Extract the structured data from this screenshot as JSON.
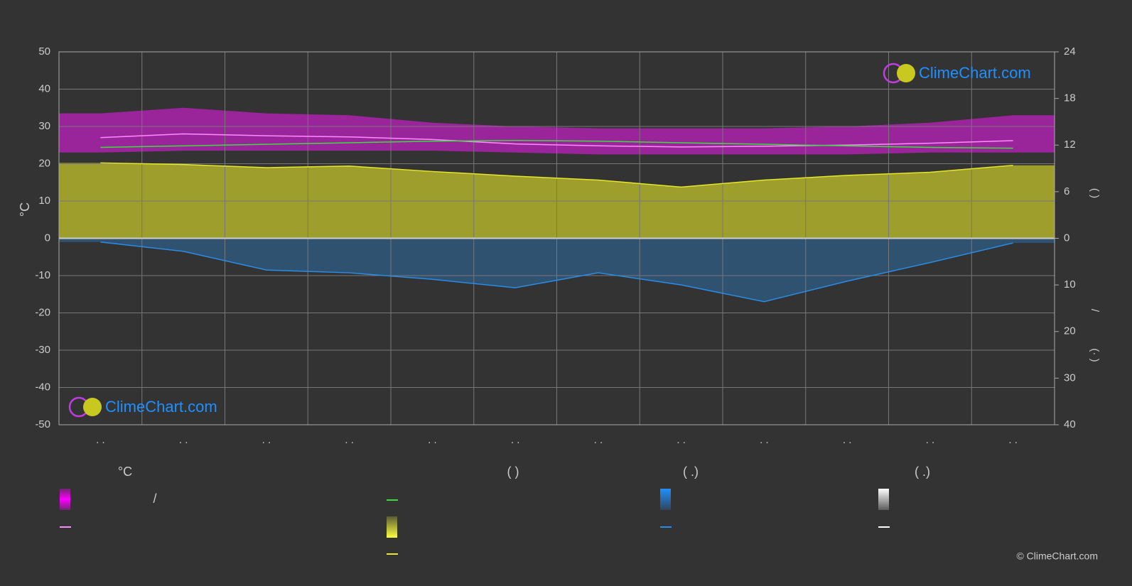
{
  "chart_data": {
    "type": "line",
    "categories": [
      ". .",
      ". .",
      ". .",
      ". .",
      ". .",
      ". .",
      ". .",
      ". .",
      ". .",
      ". .",
      ". .",
      ". ."
    ],
    "ylabel": "°C",
    "y2label": "(   )",
    "y3label": "(·   )",
    "y3slash": "/",
    "ylim": [
      -50,
      50
    ],
    "yticks": [
      50,
      40,
      30,
      20,
      10,
      0,
      -10,
      -20,
      -30,
      -40,
      -50
    ],
    "y2lim": [
      0,
      24
    ],
    "y2ticks": [
      0,
      6,
      12,
      18,
      24
    ],
    "y3lim": [
      0,
      40
    ],
    "y3ticks": [
      10,
      20,
      30,
      40
    ],
    "grid": true,
    "bands": [
      {
        "color": "#d21fd2",
        "low": [
          23,
          23.5,
          23.5,
          23.5,
          23.5,
          23,
          22.5,
          22.5,
          22.5,
          22.5,
          23,
          23
        ],
        "high": [
          33.5,
          35,
          33.5,
          33,
          31,
          30,
          29.5,
          29.5,
          29.5,
          30,
          31,
          33
        ]
      }
    ],
    "series": [
      {
        "color": "#ff8cff",
        "axis": "y",
        "values": [
          27,
          28,
          27.5,
          27.2,
          26.5,
          25.3,
          24.8,
          24.5,
          24.7,
          25,
          25.5,
          26.2
        ]
      },
      {
        "color": "#3ddc3d",
        "axis": "y2",
        "values": [
          11.7,
          11.9,
          12.1,
          12.3,
          12.5,
          12.6,
          12.5,
          12.3,
          12.1,
          11.9,
          11.7,
          11.6
        ]
      },
      {
        "color": "#e6e62a",
        "axis": "y2",
        "fill": true,
        "values": [
          9.7,
          9.5,
          9.1,
          9.3,
          8.6,
          8.0,
          7.5,
          6.6,
          7.5,
          8.1,
          8.5,
          9.4
        ]
      },
      {
        "color": "#2a8ce6",
        "axis": "y3",
        "fill": true,
        "values": [
          0.8,
          2.8,
          6.8,
          7.4,
          8.8,
          10.6,
          7.4,
          10,
          13.6,
          9.2,
          5.2,
          1.0
        ]
      }
    ]
  },
  "legend": {
    "headers": [
      "°C",
      "( )",
      "( .)",
      "( .)"
    ],
    "slash": "/"
  },
  "watermark": "ClimeChart.com",
  "copyright": "© ClimeChart.com"
}
